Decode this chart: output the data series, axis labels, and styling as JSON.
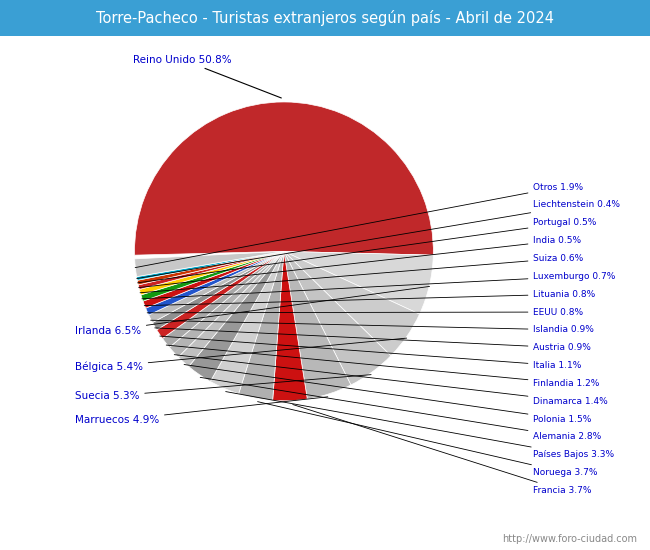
{
  "title": "Torre-Pacheco - Turistas extranjeros según país - Abril de 2024",
  "title_bg": "#3a9fd4",
  "title_color": "white",
  "watermark": "http://www.foro-ciudad.com",
  "labels": [
    "Reino Unido",
    "Irlanda",
    "Bélgica",
    "Suecia",
    "Marruecos",
    "Francia",
    "Noruega",
    "Países Bajos",
    "Alemania",
    "Polonia",
    "Dinamarca",
    "Finlandia",
    "Italia",
    "Austria",
    "Islandia",
    "EEUU",
    "Lituania",
    "Luxemburgo",
    "Suiza",
    "India",
    "Portugal",
    "Liechtenstein",
    "Otros"
  ],
  "values": [
    50.8,
    6.5,
    5.4,
    5.3,
    4.9,
    3.7,
    3.7,
    3.3,
    2.8,
    1.5,
    1.4,
    1.2,
    1.1,
    0.9,
    0.9,
    0.8,
    0.8,
    0.7,
    0.6,
    0.5,
    0.5,
    0.4,
    1.9
  ],
  "colors": [
    "#c0282a",
    "#d8d8d8",
    "#cccccc",
    "#c4c4c4",
    "#b8b8b8",
    "#cc1111",
    "#b0b0b0",
    "#d0d0d0",
    "#989898",
    "#c0c0c0",
    "#b4b4b4",
    "#a8a8a8",
    "#cc2222",
    "#909090",
    "#bcbcbc",
    "#2255cc",
    "#cc1111",
    "#119911",
    "#ffcc00",
    "#cc2222",
    "#cc3300",
    "#00aacc",
    "#c8c8c8"
  ],
  "label_color": "#0000cc",
  "bg_color": "#ffffff",
  "left_labels": [
    "Reino Unido",
    "Irlanda",
    "Bélgica",
    "Suecia",
    "Marruecos"
  ]
}
